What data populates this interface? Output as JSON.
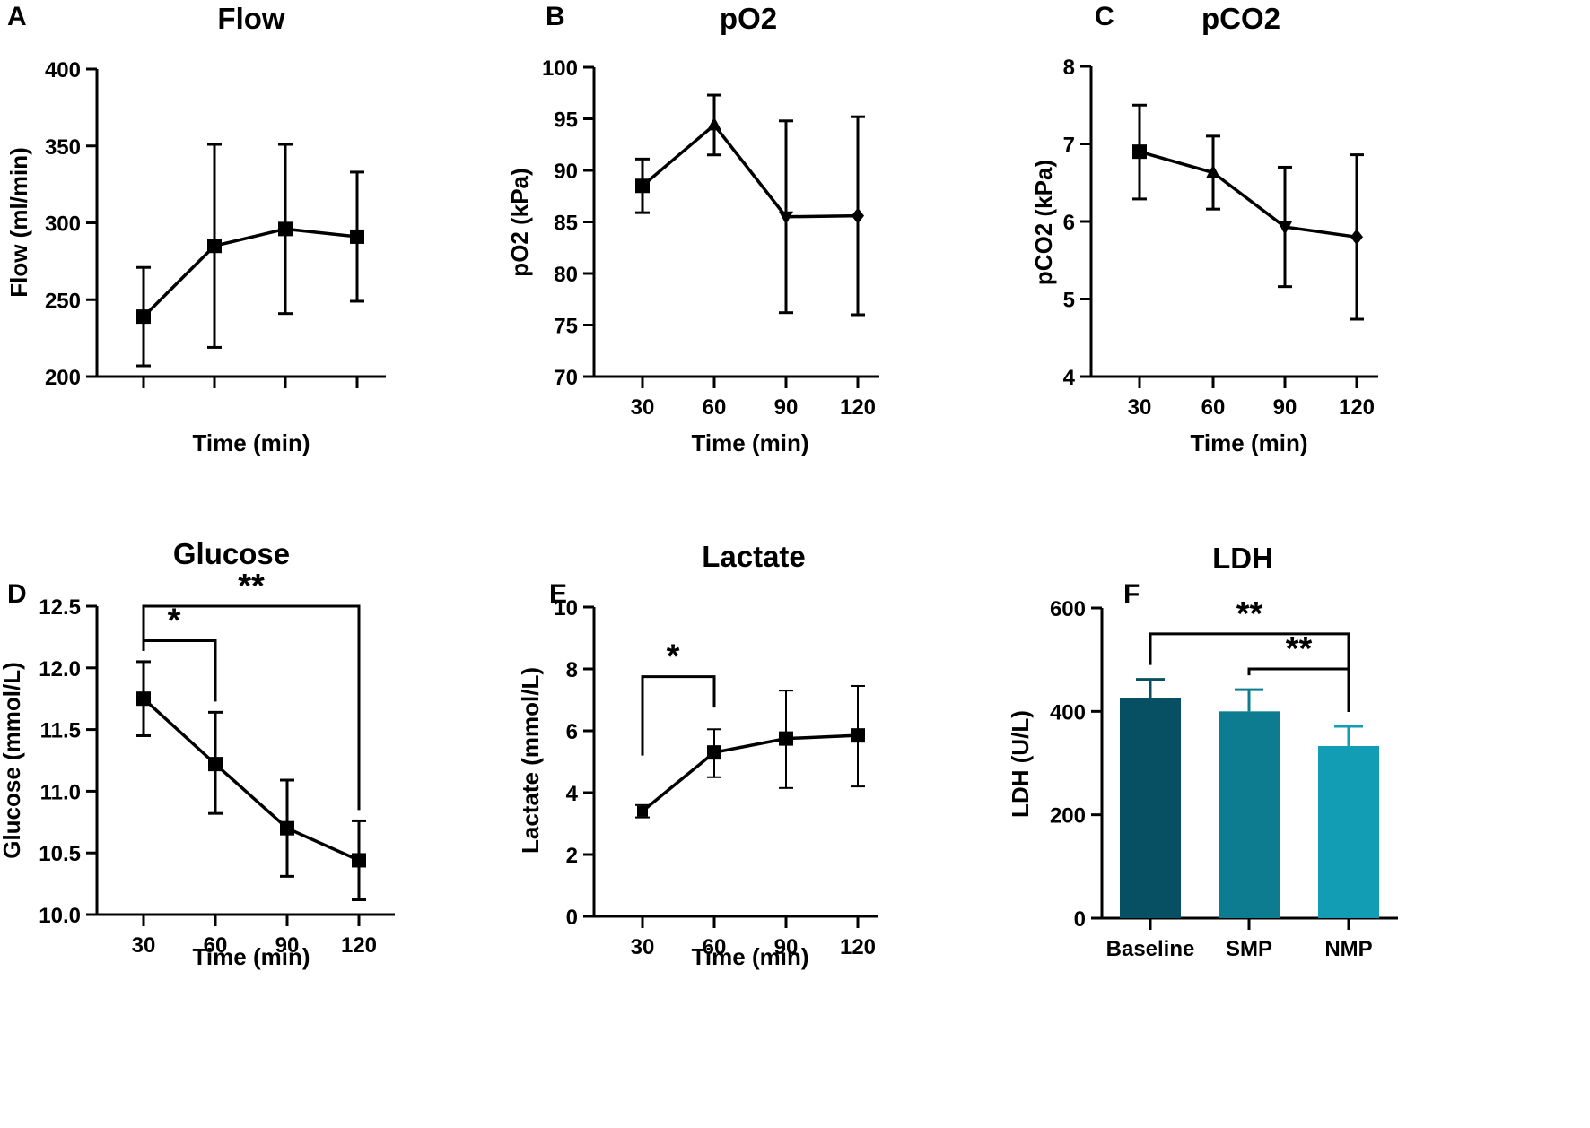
{
  "figure": {
    "panels": [
      "A",
      "B",
      "C",
      "D",
      "E",
      "F"
    ]
  },
  "chart_data": [
    {
      "panel": "A",
      "type": "line",
      "title": "Flow",
      "xlabel": "Time (min)",
      "ylabel": "Flow (ml/min)",
      "x": [
        30,
        60,
        90,
        120
      ],
      "x_tick_labels": [],
      "ylim": [
        200,
        400
      ],
      "yticks": [
        200,
        250,
        300,
        350,
        400
      ],
      "values": [
        239,
        285,
        296,
        291
      ],
      "err_low": [
        207,
        219,
        241,
        249
      ],
      "err_high": [
        271,
        351,
        351,
        333
      ],
      "markers": [
        "square",
        "square",
        "square",
        "square"
      ],
      "significance": []
    },
    {
      "panel": "B",
      "type": "line",
      "title": "pO2",
      "xlabel": "Time (min)",
      "ylabel": "pO2 (kPa)",
      "x": [
        30,
        60,
        90,
        120
      ],
      "x_tick_labels": [
        "30",
        "60",
        "90",
        "120"
      ],
      "ylim": [
        70,
        100
      ],
      "yticks": [
        70,
        75,
        80,
        85,
        90,
        95,
        100
      ],
      "values": [
        88.5,
        94.4,
        85.5,
        85.6
      ],
      "err_low": [
        85.9,
        91.5,
        76.2,
        76.0
      ],
      "err_high": [
        91.1,
        97.3,
        94.8,
        95.2
      ],
      "markers": [
        "square",
        "triangle",
        "triangle-down",
        "diamond"
      ],
      "significance": []
    },
    {
      "panel": "C",
      "type": "line",
      "title": "pCO2",
      "xlabel": "Time (min)",
      "ylabel": "pCO2 (kPa)",
      "x": [
        30,
        60,
        90,
        120
      ],
      "x_tick_labels": [
        "30",
        "60",
        "90",
        "120"
      ],
      "ylim": [
        4,
        8
      ],
      "yticks": [
        4,
        5,
        6,
        7,
        8
      ],
      "values": [
        6.9,
        6.63,
        5.93,
        5.8
      ],
      "err_low": [
        6.29,
        6.16,
        5.16,
        4.74
      ],
      "err_high": [
        7.5,
        7.1,
        6.7,
        6.86
      ],
      "markers": [
        "square",
        "triangle",
        "triangle-down",
        "diamond"
      ],
      "significance": []
    },
    {
      "panel": "D",
      "type": "line",
      "title": "Glucose",
      "xlabel": "Time (min)",
      "ylabel": "Glucose (mmol/L)",
      "x": [
        30,
        60,
        90,
        120
      ],
      "x_tick_labels": [
        "30",
        "60",
        "90",
        "120"
      ],
      "ylim": [
        10.0,
        12.5
      ],
      "yticks": [
        10.0,
        10.5,
        11.0,
        11.5,
        12.0,
        12.5
      ],
      "ytick_labels": [
        "10.0",
        "10.5",
        "11.0",
        "11.5",
        "12.0",
        "12.5"
      ],
      "values": [
        11.75,
        11.22,
        10.7,
        10.44
      ],
      "err_low": [
        11.45,
        10.82,
        10.31,
        10.12
      ],
      "err_high": [
        12.05,
        11.64,
        11.09,
        10.76
      ],
      "markers": [
        "square",
        "square",
        "square",
        "square"
      ],
      "significance": [
        {
          "from": 0,
          "to": 1,
          "label": "*",
          "level": 12.22
        },
        {
          "from": 0,
          "to": 3,
          "label": "**",
          "level": 12.5
        }
      ]
    },
    {
      "panel": "E",
      "type": "line",
      "title": "Lactate",
      "xlabel": "Time (min)",
      "ylabel": "Lactate (mmol/L)",
      "x": [
        30,
        60,
        90,
        120
      ],
      "x_tick_labels": [
        "30",
        "60",
        "90",
        "120"
      ],
      "ylim": [
        0,
        10
      ],
      "yticks": [
        0,
        2,
        4,
        6,
        8,
        10
      ],
      "values": [
        3.4,
        5.3,
        5.75,
        5.85
      ],
      "err_low": [
        3.2,
        4.5,
        4.15,
        4.2
      ],
      "err_high": [
        3.6,
        6.05,
        7.3,
        7.45
      ],
      "markers": [
        "square",
        "square",
        "square",
        "square"
      ],
      "significance": [
        {
          "from": 0,
          "to": 1,
          "label": "*",
          "level": 7.75
        }
      ]
    },
    {
      "panel": "F",
      "type": "bar",
      "title": "LDH",
      "xlabel": "",
      "ylabel": "LDH (U/L)",
      "categories": [
        "Baseline",
        "SMP",
        "NMP"
      ],
      "ylim": [
        0,
        600
      ],
      "yticks": [
        0,
        200,
        400,
        600
      ],
      "values": [
        425,
        400,
        333
      ],
      "err_high": [
        462,
        442,
        371
      ],
      "colors": [
        "#075064",
        "#0d7c91",
        "#129db5"
      ],
      "significance": [
        {
          "from": 0,
          "to": 2,
          "label": "**",
          "level": 550
        },
        {
          "from": 1,
          "to": 2,
          "label": "**",
          "level": 482
        }
      ]
    }
  ]
}
